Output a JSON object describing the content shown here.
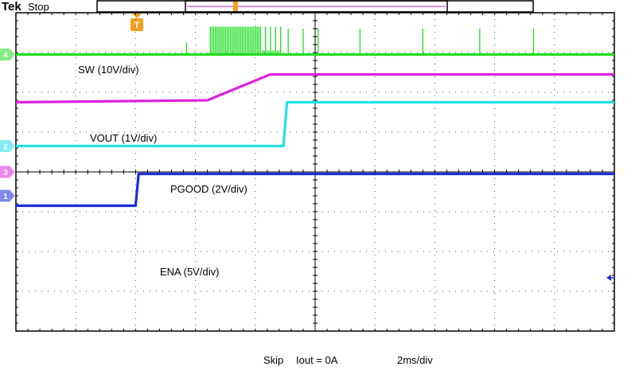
{
  "header": {
    "brand": "Tek",
    "status": "Stop",
    "trigger_marker": "T"
  },
  "chart_data": {
    "type": "line",
    "x": {
      "divisions": 10,
      "units_per_div": "2ms/div"
    },
    "y": {
      "divisions": 8
    },
    "grid": true,
    "series": [
      {
        "name": "SW (10V/div)",
        "channel": "4",
        "color": "#22dd22",
        "points": [
          [
            0,
            6.95
          ],
          [
            10,
            6.95
          ]
        ],
        "burst": {
          "from": 3.25,
          "to": 4.45,
          "low": 6.95,
          "high": 7.65
        },
        "spikes": [
          [
            2.85,
            7.25
          ],
          [
            4.55,
            7.6
          ],
          [
            4.8,
            7.6
          ],
          [
            5.05,
            7.6
          ],
          [
            5.75,
            7.6
          ],
          [
            6.8,
            7.6
          ],
          [
            7.75,
            7.6
          ],
          [
            8.65,
            7.6
          ]
        ]
      },
      {
        "name": "VOUT (1V/div)",
        "channel": "3",
        "color": "#dd22dd",
        "points": [
          [
            0,
            5.75
          ],
          [
            3.2,
            5.8
          ],
          [
            4.25,
            6.45
          ],
          [
            10,
            6.45
          ]
        ]
      },
      {
        "name": "PGOOD (2V/div)",
        "channel": "2",
        "color": "#22e0e8",
        "points": [
          [
            0,
            4.65
          ],
          [
            4.47,
            4.65
          ],
          [
            4.53,
            5.75
          ],
          [
            10,
            5.75
          ]
        ]
      },
      {
        "name": "ENA  (5V/div)",
        "channel": "1",
        "color": "#1a2ed8",
        "points": [
          [
            0,
            3.15
          ],
          [
            2.0,
            3.15
          ],
          [
            2.05,
            3.95
          ],
          [
            10,
            3.95
          ]
        ]
      }
    ]
  },
  "footer": {
    "mode": "Skip",
    "iout": "Iout = 0A",
    "timebase": "2ms/div"
  }
}
